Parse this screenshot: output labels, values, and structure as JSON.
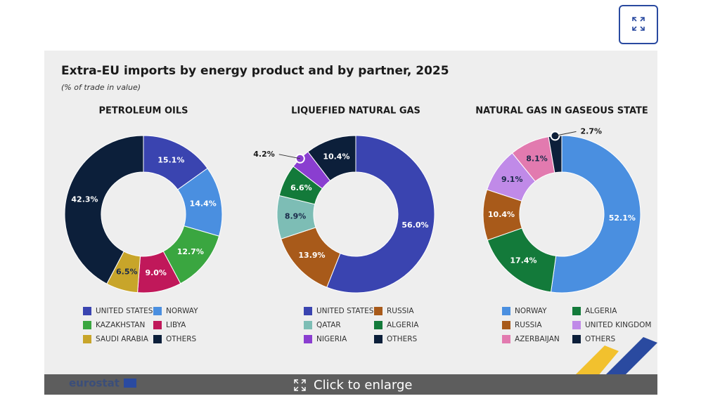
{
  "title": "Extra-EU imports by energy product and by partner, 2025",
  "subtitle": "(% of trade in value)",
  "footer": {
    "brand": "eurostat",
    "button": "Click to enlarge"
  },
  "chart_data": [
    {
      "type": "donut",
      "title": "PETROLEUM OILS",
      "categories": [
        "UNITED STATES",
        "NORWAY",
        "KAZAKHSTAN",
        "LIBYA",
        "SAUDI ARABIA",
        "OTHERS"
      ],
      "values": [
        15.1,
        14.4,
        12.7,
        9.0,
        6.5,
        42.3
      ],
      "value_labels": [
        "15.1%",
        "14.4%",
        "12.7%",
        "9.0%",
        "6.5%",
        "42.3%"
      ],
      "colors": [
        "#3a44b0",
        "#4a8fe0",
        "#3aa640",
        "#c0185a",
        "#c8a52a",
        "#0c1f3a"
      ]
    },
    {
      "type": "donut",
      "title": "LIQUEFIED NATURAL GAS",
      "categories": [
        "UNITED STATES",
        "RUSSIA",
        "QATAR",
        "ALGERIA",
        "NIGERIA",
        "OTHERS"
      ],
      "values": [
        56.0,
        13.9,
        8.9,
        6.6,
        4.2,
        10.4
      ],
      "value_labels": [
        "56.0%",
        "13.9%",
        "8.9%",
        "6.6%",
        "4.2%",
        "10.4%"
      ],
      "colors": [
        "#3a44b0",
        "#a85a1a",
        "#7dbdb5",
        "#137a3a",
        "#8a3ed0",
        "#0c1f3a"
      ]
    },
    {
      "type": "donut",
      "title": "NATURAL GAS IN GASEOUS STATE",
      "categories": [
        "NORWAY",
        "ALGERIA",
        "RUSSIA",
        "UNITED KINGDOM",
        "AZERBAIJAN",
        "OTHERS"
      ],
      "values": [
        52.1,
        17.4,
        10.4,
        9.1,
        8.1,
        2.7
      ],
      "value_labels": [
        "52.1%",
        "17.4%",
        "10.4%",
        "9.1%",
        "8.1%",
        "2.7%"
      ],
      "colors": [
        "#4a8fe0",
        "#137a3a",
        "#a85a1a",
        "#c08ae8",
        "#e27aaf",
        "#0c1f3a"
      ]
    }
  ]
}
